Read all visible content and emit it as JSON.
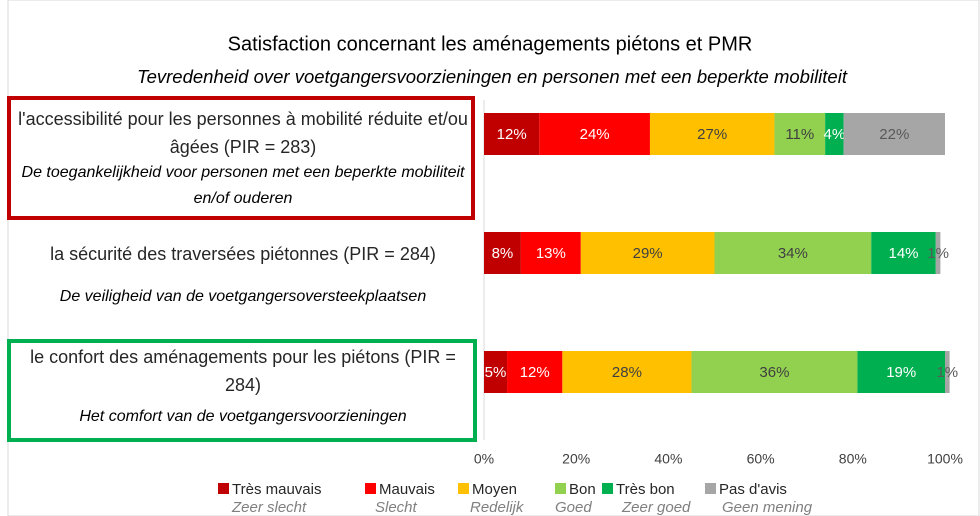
{
  "chart_data": {
    "type": "stacked-barh",
    "title": "Satisfaction concernant les aménagements piétons et PMR",
    "subtitle": "Tevredenheid over voetgangersvoorzieningen en personen met een beperkte mobiliteit",
    "categories": [
      "l'accessibilité pour les personnes à mobilité réduite et/ou âgées (PIR = 283)",
      "la sécurité des traversées piétonnes (PIR = 284)",
      "le confort des aménagements pour les piétons (PIR = 284)"
    ],
    "categories_nl": [
      "De toegankelijkheid voor personen met een beperkte mobiliteit en/of ouderen",
      "De veiligheid van de voetgangersoversteekplaatsen",
      "Het comfort van de voetgangersvoorzieningen"
    ],
    "series": [
      {
        "name": "Très mauvais",
        "name_nl": "Zeer slecht",
        "color": "#c00000",
        "label_color": "#ffffff",
        "values": [
          12,
          8,
          5
        ],
        "value_labels": [
          "12%",
          "8%",
          "5%"
        ]
      },
      {
        "name": "Mauvais",
        "name_nl": "Slecht",
        "color": "#ff0000",
        "label_color": "#ffffff",
        "values": [
          24,
          13,
          12
        ],
        "value_labels": [
          "24%",
          "13%",
          "12%"
        ]
      },
      {
        "name": "Moyen",
        "name_nl": "Redelijk",
        "color": "#ffc000",
        "label_color": "#404040",
        "values": [
          27,
          29,
          28
        ],
        "value_labels": [
          "27%",
          "29%",
          "28%"
        ]
      },
      {
        "name": "Bon",
        "name_nl": "Goed",
        "color": "#92d050",
        "label_color": "#404040",
        "values": [
          11,
          34,
          36
        ],
        "value_labels": [
          "11%",
          "34%",
          "36%"
        ]
      },
      {
        "name": "Très bon",
        "name_nl": "Zeer goed",
        "color": "#00b050",
        "label_color": "#ffffff",
        "values": [
          4,
          14,
          19
        ],
        "value_labels": [
          "4%",
          "14%",
          "19%"
        ]
      },
      {
        "name": "Pas d'avis",
        "name_nl": "Geen mening",
        "color": "#a6a6a6",
        "label_color": "#595959",
        "values": [
          22,
          1,
          1
        ],
        "value_labels": [
          "22%",
          "1%",
          "1%"
        ]
      }
    ],
    "xlim": [
      0,
      100
    ],
    "xticks": [
      {
        "value": 0,
        "label": "0%"
      },
      {
        "value": 20,
        "label": "20%"
      },
      {
        "value": 40,
        "label": "40%"
      },
      {
        "value": 60,
        "label": "60%"
      },
      {
        "value": 80,
        "label": "80%"
      },
      {
        "value": 100,
        "label": "100%"
      }
    ],
    "legend": "bottom"
  }
}
